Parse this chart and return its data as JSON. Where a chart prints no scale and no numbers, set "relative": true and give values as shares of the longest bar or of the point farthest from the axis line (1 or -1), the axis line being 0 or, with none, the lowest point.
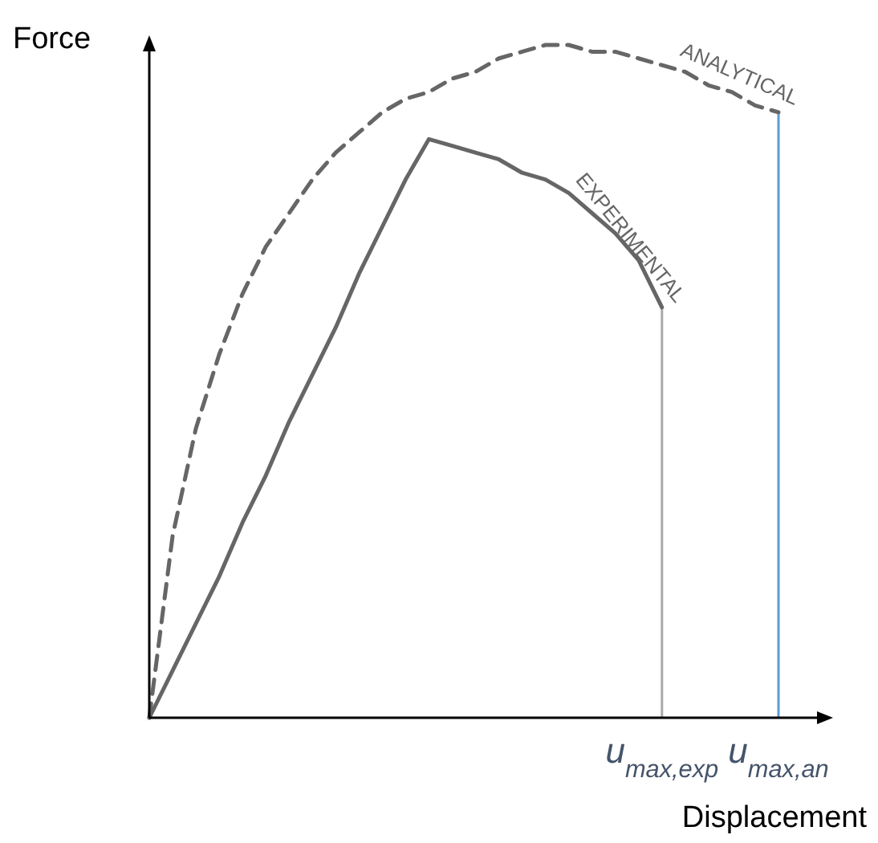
{
  "chart_data": {
    "type": "line",
    "relative": true,
    "xlabel": "Displacement",
    "ylabel": "Force",
    "tick_labels": "x",
    "marker": "none",
    "categories": [
      null,
      null,
      null,
      null,
      null,
      null,
      null,
      null,
      null,
      null,
      null,
      null,
      null,
      null,
      null,
      null,
      null,
      null,
      null,
      null,
      null,
      null,
      "u$_{max,exp}$",
      null,
      null,
      null,
      null,
      "u$_{max,an}$"
    ],
    "series": [
      {
        "name": "ANALYTICAL",
        "color": "#666666",
        "line_style": "dashed",
        "values": [
          0,
          0.27,
          0.43,
          0.54,
          0.63,
          0.7,
          0.75,
          0.8,
          0.84,
          0.87,
          0.9,
          0.92,
          0.93,
          0.95,
          0.96,
          0.98,
          0.99,
          1.0,
          1.0,
          0.99,
          0.99,
          0.98,
          0.97,
          0.96,
          0.94,
          0.93,
          0.91,
          0.9
        ]
      },
      {
        "name": "EXPERIMENTAL",
        "color": "#666666",
        "line_style": "solid",
        "values": [
          0,
          0.07,
          0.14,
          0.21,
          0.29,
          0.36,
          0.44,
          0.51,
          0.58,
          0.66,
          0.73,
          0.8,
          0.86,
          0.85,
          0.84,
          0.83,
          0.81,
          0.8,
          0.78,
          0.75,
          0.72,
          0.68,
          0.61,
          null,
          null,
          null,
          null,
          null
        ]
      }
    ],
    "ref_lines": [
      {
        "axis": "x",
        "value": "u$_{max,exp}$",
        "color": "#aaaaaa"
      },
      {
        "axis": "x",
        "value": "u$_{max,an}$",
        "color": "#5b9bd5"
      }
    ]
  }
}
